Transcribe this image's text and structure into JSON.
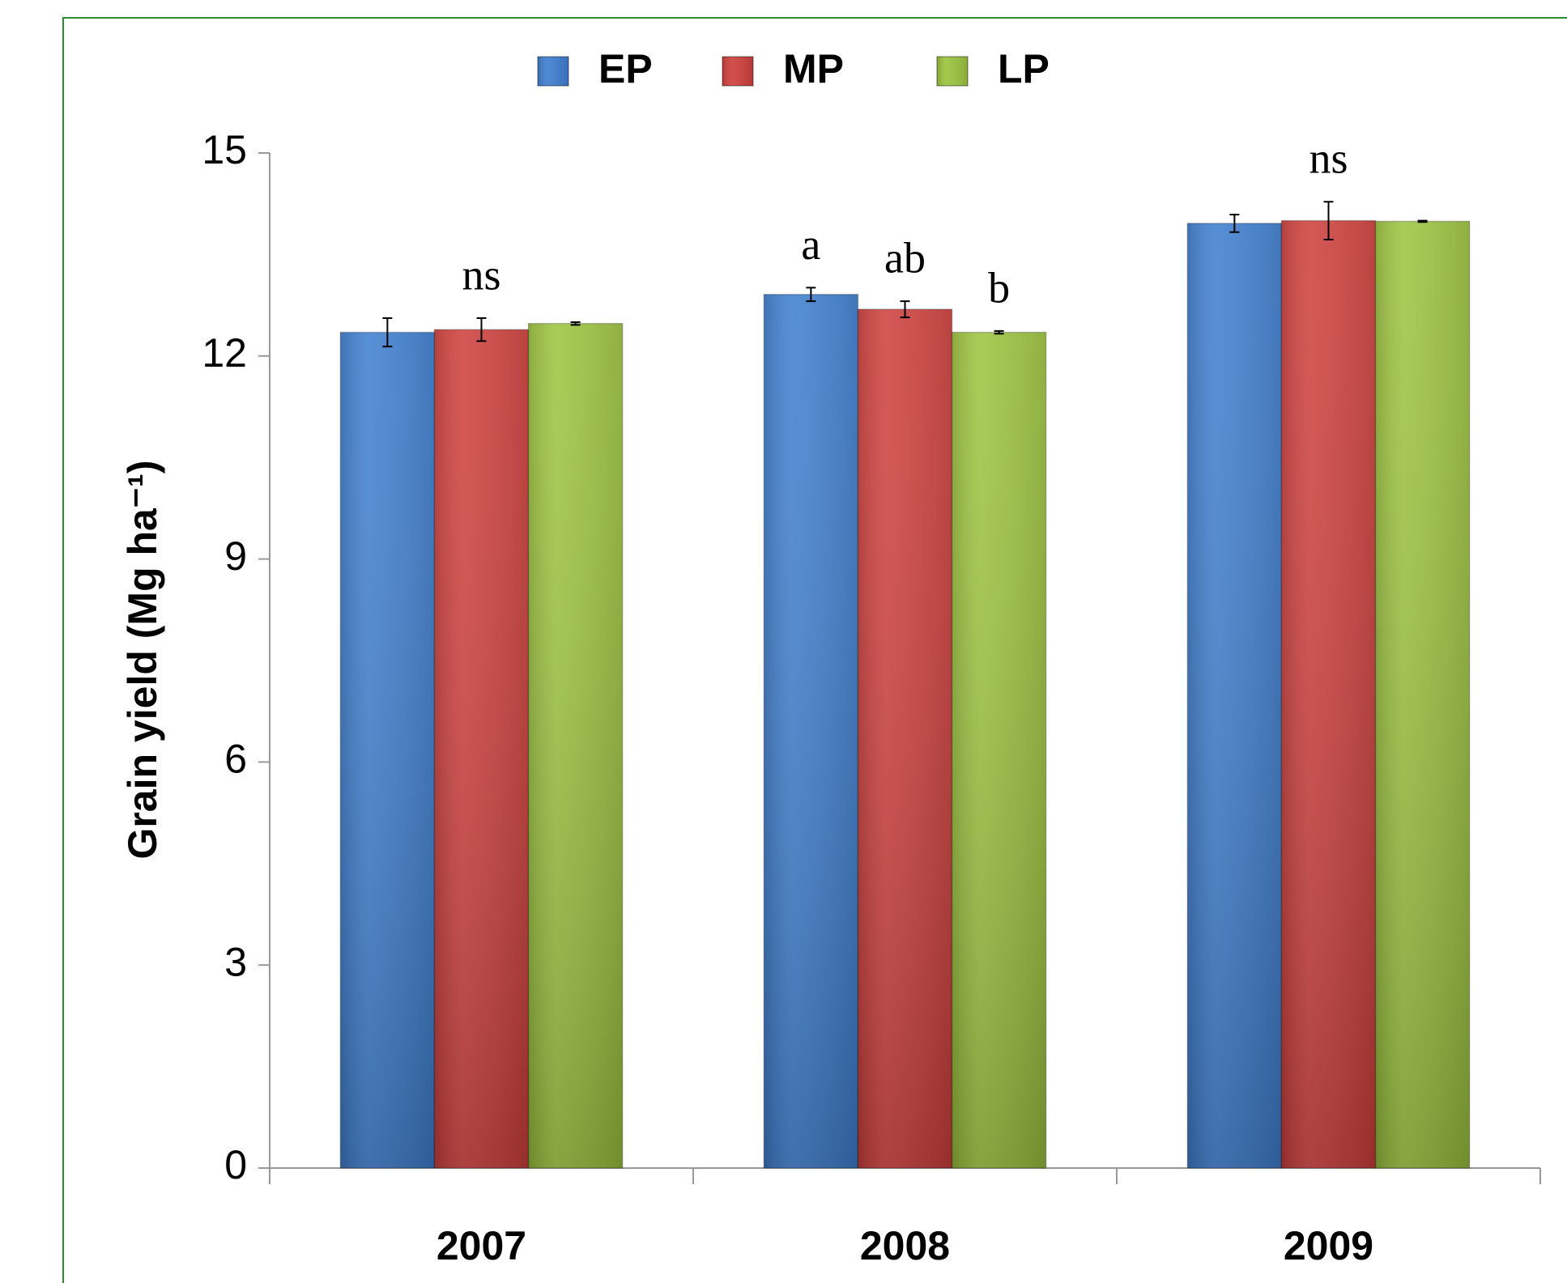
{
  "chart_data": {
    "type": "bar",
    "ylabel": "Grain yield (Mg ha⁻¹)",
    "categories": [
      "2007",
      "2008",
      "2009"
    ],
    "series": [
      {
        "name": "EP",
        "color": "#3f7fd0",
        "values": [
          12.35,
          12.91,
          13.96
        ],
        "errors": [
          0.21,
          0.1,
          0.13
        ]
      },
      {
        "name": "MP",
        "color": "#cf403d",
        "values": [
          12.39,
          12.69,
          14.0
        ],
        "errors": [
          0.17,
          0.12,
          0.28
        ]
      },
      {
        "name": "LP",
        "color": "#9cc43f",
        "values": [
          12.48,
          12.35,
          13.99
        ],
        "errors": [
          0.02,
          0.02,
          0.01
        ]
      }
    ],
    "letters": [
      [
        "ns"
      ],
      [
        "a",
        "ab",
        "b"
      ],
      [
        "ns"
      ]
    ],
    "ylim": [
      0,
      15
    ],
    "yticks": [
      0,
      3,
      6,
      9,
      12,
      15
    ],
    "grid": false,
    "legend": "top"
  }
}
